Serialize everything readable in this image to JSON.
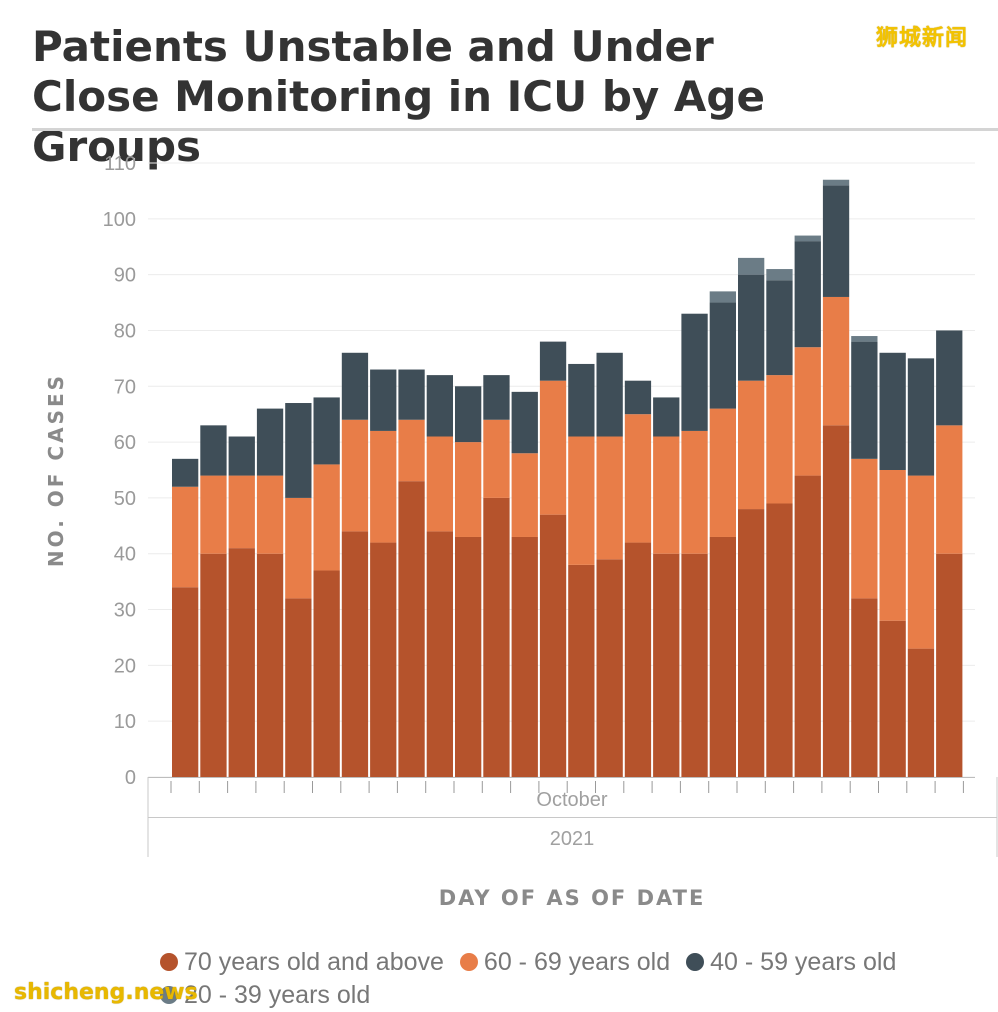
{
  "header": {
    "title": "Patients Unstable and Under Close Monitoring in ICU by Age Groups",
    "brand": "狮城新闻"
  },
  "watermark": "shicheng.news",
  "chart_data": {
    "type": "bar",
    "stacked": true,
    "title": "Patients Unstable and Under Close Monitoring in ICU by Age Groups",
    "xlabel": "DAY OF AS OF DATE",
    "ylabel": "NO. OF CASES",
    "ylim": [
      0,
      110
    ],
    "yticks": [
      0,
      10,
      20,
      30,
      40,
      50,
      60,
      70,
      80,
      90,
      100,
      110
    ],
    "grid": true,
    "legend_position": "bottom",
    "x_group_labels": [
      "October",
      "2021"
    ],
    "series": [
      {
        "name": "70 years old and above",
        "color": "#b5532c",
        "values": [
          34,
          40,
          41,
          40,
          32,
          37,
          44,
          42,
          53,
          44,
          43,
          50,
          43,
          47,
          38,
          39,
          42,
          40,
          40,
          43,
          48,
          49,
          54,
          63,
          32,
          28,
          23,
          40
        ]
      },
      {
        "name": "60 - 69 years old",
        "color": "#e87d48",
        "values": [
          18,
          14,
          13,
          14,
          18,
          19,
          20,
          20,
          11,
          17,
          17,
          14,
          15,
          24,
          23,
          22,
          23,
          21,
          22,
          23,
          23,
          23,
          23,
          23,
          25,
          27,
          31,
          23
        ]
      },
      {
        "name": "40 - 59 years old",
        "color": "#3f4e58",
        "values": [
          5,
          9,
          7,
          12,
          17,
          12,
          12,
          11,
          9,
          11,
          10,
          8,
          11,
          7,
          13,
          15,
          6,
          7,
          21,
          19,
          19,
          17,
          19,
          20,
          21,
          21,
          21,
          17
        ]
      },
      {
        "name": "20 - 39 years old",
        "color": "#6b7c86",
        "values": [
          0,
          0,
          0,
          0,
          0,
          0,
          0,
          0,
          0,
          0,
          0,
          0,
          0,
          0,
          0,
          0,
          0,
          0,
          0,
          2,
          3,
          2,
          1,
          1,
          1,
          0,
          0,
          0
        ]
      }
    ]
  }
}
